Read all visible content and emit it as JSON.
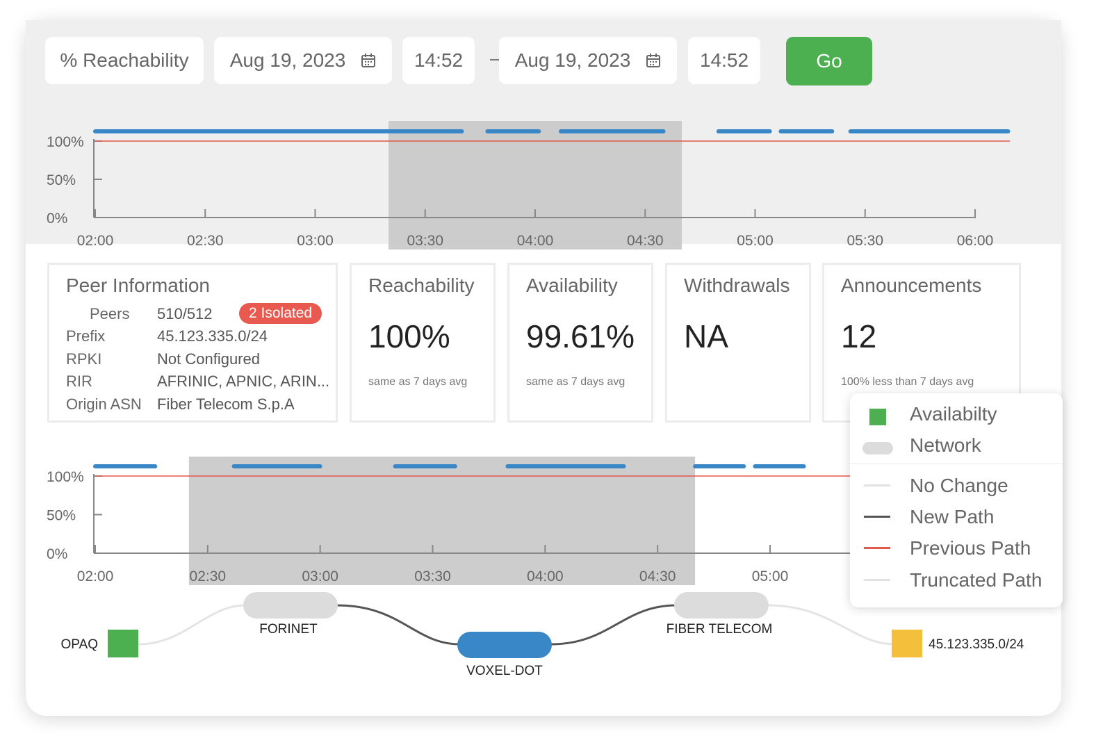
{
  "toolbar": {
    "metric_select": "% Reachability",
    "start_date": "Aug 19, 2023",
    "start_time": "14:52",
    "end_date": "Aug 19, 2023",
    "end_time": "14:52",
    "go_label": "Go"
  },
  "chart_data": [
    {
      "type": "line",
      "title": "",
      "x_ticks": [
        "02:00",
        "02:30",
        "03:00",
        "03:30",
        "04:00",
        "04:30",
        "05:00",
        "05:30",
        "06:00"
      ],
      "y_ticks": [
        "100%",
        "50%",
        "0%"
      ],
      "ylim": [
        0,
        100
      ],
      "threshold": 100,
      "selection": [
        "03:20",
        "04:40"
      ],
      "series": [
        {
          "name": "Reachability",
          "segments": [
            [
              "02:00",
              "03:40"
            ],
            [
              "03:47",
              "04:01"
            ],
            [
              "04:07",
              "04:35"
            ],
            [
              "04:50",
              "05:04"
            ],
            [
              "05:07",
              "05:21"
            ],
            [
              "05:26",
              "06:09"
            ]
          ]
        }
      ]
    },
    {
      "type": "line",
      "title": "",
      "x_ticks": [
        "02:00",
        "02:30",
        "03:00",
        "03:30",
        "04:00",
        "04:30",
        "05:00"
      ],
      "y_ticks": [
        "100%",
        "50%",
        "0%"
      ],
      "ylim": [
        0,
        100
      ],
      "threshold": 100,
      "selection": [
        "02:25",
        "04:40"
      ],
      "series": [
        {
          "name": "Availability",
          "segments": [
            [
              "02:00",
              "02:16"
            ],
            [
              "02:37",
              "03:00"
            ],
            [
              "03:20",
              "03:36"
            ],
            [
              "03:50",
              "04:21"
            ],
            [
              "04:40",
              "04:53"
            ],
            [
              "04:56",
              "05:09"
            ]
          ]
        }
      ]
    }
  ],
  "peer_info": {
    "title": "Peer Information",
    "peers_label": "Peers",
    "peers_value": "510/512",
    "isolated_badge": "2 Isolated",
    "prefix_label": "Prefix",
    "prefix_value": "45.123.335.0/24",
    "rpki_label": "RPKI",
    "rpki_value": "Not Configured",
    "rir_label": "RIR",
    "rir_value": "AFRINIC, APNIC, ARIN...",
    "asn_label": "Origin ASN",
    "asn_value": "Fiber Telecom S.p.A"
  },
  "stats": [
    {
      "title": "Reachability",
      "value": "100%",
      "sub": "same as 7 days avg"
    },
    {
      "title": "Availability",
      "value": "99.61%",
      "sub": "same as 7 days avg"
    },
    {
      "title": "Withdrawals",
      "value": "NA",
      "sub": ""
    },
    {
      "title": "Announcements",
      "value": "12",
      "sub": "100% less than 7 days avg"
    }
  ],
  "legend": {
    "availability": "Availabilty",
    "network": "Network",
    "no_change": "No Change",
    "new_path": "New Path",
    "previous_path": "Previous Path",
    "truncated_path": "Truncated Path"
  },
  "path": {
    "origin": "OPAQ",
    "hop1": "FORINET",
    "hop2": "VOXEL-DOT",
    "hop3": "FIBER TELECOM",
    "destination": "45.123.335.0/24"
  },
  "colors": {
    "accent_green": "#4caf50",
    "series_blue": "#3a87c8",
    "threshold_red": "#e05a50",
    "badge_red": "#e85a50",
    "destination_yellow": "#f4c03b"
  }
}
